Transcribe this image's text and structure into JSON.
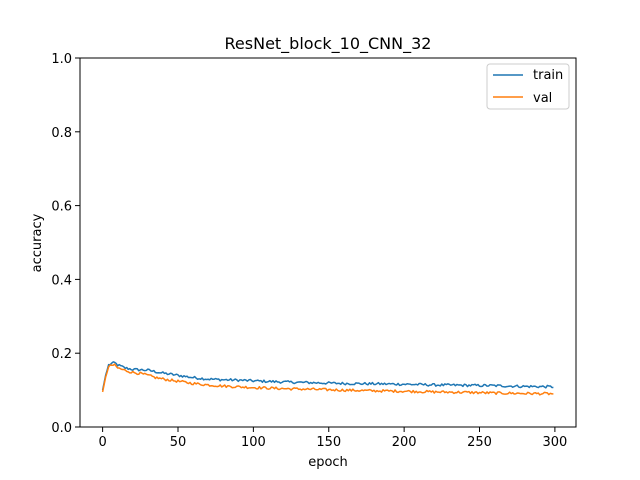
{
  "chart_data": {
    "type": "line",
    "title": "ResNet_block_10_CNN_32",
    "xlabel": "epoch",
    "ylabel": "accuracy",
    "xlim": [
      -15,
      314
    ],
    "ylim": [
      0.0,
      1.0
    ],
    "xticks": [
      0,
      50,
      100,
      150,
      200,
      250,
      300
    ],
    "yticks": [
      0.0,
      0.2,
      0.4,
      0.6,
      0.8,
      1.0
    ],
    "ytick_labels": [
      "0.0",
      "0.2",
      "0.4",
      "0.6",
      "0.8",
      "1.0"
    ],
    "grid": false,
    "legend_position": "top-right",
    "series": [
      {
        "name": "train",
        "color": "#1f77b4",
        "anchors": [
          [
            0,
            0.1
          ],
          [
            2,
            0.14
          ],
          [
            4,
            0.168
          ],
          [
            6,
            0.172
          ],
          [
            8,
            0.174
          ],
          [
            10,
            0.168
          ],
          [
            15,
            0.16
          ],
          [
            20,
            0.156
          ],
          [
            25,
            0.155
          ],
          [
            30,
            0.154
          ],
          [
            35,
            0.15
          ],
          [
            40,
            0.146
          ],
          [
            50,
            0.14
          ],
          [
            60,
            0.134
          ],
          [
            70,
            0.13
          ],
          [
            80,
            0.128
          ],
          [
            90,
            0.127
          ],
          [
            100,
            0.125
          ],
          [
            120,
            0.122
          ],
          [
            140,
            0.12
          ],
          [
            160,
            0.118
          ],
          [
            180,
            0.117
          ],
          [
            200,
            0.116
          ],
          [
            220,
            0.114
          ],
          [
            240,
            0.113
          ],
          [
            260,
            0.112
          ],
          [
            280,
            0.11
          ],
          [
            299,
            0.109
          ]
        ]
      },
      {
        "name": "val",
        "color": "#ff7f0e",
        "anchors": [
          [
            0,
            0.095
          ],
          [
            2,
            0.135
          ],
          [
            4,
            0.162
          ],
          [
            6,
            0.168
          ],
          [
            8,
            0.167
          ],
          [
            10,
            0.16
          ],
          [
            15,
            0.153
          ],
          [
            20,
            0.148
          ],
          [
            25,
            0.145
          ],
          [
            30,
            0.14
          ],
          [
            35,
            0.134
          ],
          [
            40,
            0.13
          ],
          [
            50,
            0.124
          ],
          [
            60,
            0.118
          ],
          [
            70,
            0.114
          ],
          [
            80,
            0.111
          ],
          [
            90,
            0.109
          ],
          [
            100,
            0.107
          ],
          [
            120,
            0.104
          ],
          [
            140,
            0.102
          ],
          [
            160,
            0.1
          ],
          [
            180,
            0.098
          ],
          [
            200,
            0.097
          ],
          [
            220,
            0.095
          ],
          [
            240,
            0.094
          ],
          [
            260,
            0.092
          ],
          [
            280,
            0.091
          ],
          [
            299,
            0.09
          ]
        ]
      }
    ]
  }
}
